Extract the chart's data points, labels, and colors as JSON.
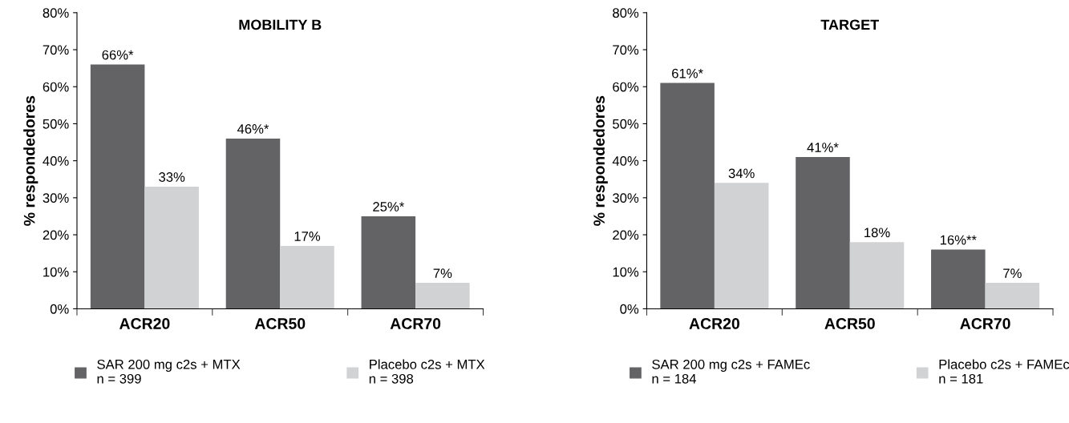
{
  "chart_data": [
    {
      "type": "bar",
      "title": "MOBILITY B",
      "ylabel": "% respondedores",
      "categories": [
        "ACR20",
        "ACR50",
        "ACR70"
      ],
      "ylim": [
        0,
        80
      ],
      "yticks": [
        {
          "value": 0,
          "label": "0%"
        },
        {
          "value": 10,
          "label": "10%"
        },
        {
          "value": 20,
          "label": "20%"
        },
        {
          "value": 30,
          "label": "30%"
        },
        {
          "value": 40,
          "label": "40%"
        },
        {
          "value": 50,
          "label": "50%"
        },
        {
          "value": 60,
          "label": "60%"
        },
        {
          "value": 70,
          "label": "70%"
        },
        {
          "value": 80,
          "label": "80%"
        }
      ],
      "legend": "bottom",
      "grid": false,
      "series": [
        {
          "name": "SAR 200 mg c2s + MTX\nn = 399",
          "color": "#636366",
          "values": [
            66,
            46,
            25
          ],
          "value_labels": [
            "66%*",
            "46%*",
            "25%*"
          ]
        },
        {
          "name": "Placebo c2s + MTX\nn = 398",
          "color": "#d1d2d4",
          "values": [
            33,
            17,
            7
          ],
          "value_labels": [
            "33%",
            "17%",
            "7%"
          ]
        }
      ]
    },
    {
      "type": "bar",
      "title": "TARGET",
      "ylabel": "% respondedores",
      "categories": [
        "ACR20",
        "ACR50",
        "ACR70"
      ],
      "ylim": [
        0,
        80
      ],
      "yticks": [
        {
          "value": 0,
          "label": "0%"
        },
        {
          "value": 10,
          "label": "10%"
        },
        {
          "value": 20,
          "label": "20%"
        },
        {
          "value": 30,
          "label": "30%"
        },
        {
          "value": 40,
          "label": "40%"
        },
        {
          "value": 50,
          "label": "50%"
        },
        {
          "value": 60,
          "label": "60%"
        },
        {
          "value": 70,
          "label": "70%"
        },
        {
          "value": 80,
          "label": "80%"
        }
      ],
      "legend": "bottom",
      "grid": false,
      "series": [
        {
          "name": "SAR 200 mg c2s + FAMEc\nn = 184",
          "color": "#636366",
          "values": [
            61,
            41,
            16
          ],
          "value_labels": [
            "61%*",
            "41%*",
            "16%**"
          ]
        },
        {
          "name": "Placebo c2s + FAMEc\nn = 181",
          "color": "#d1d2d4",
          "values": [
            34,
            18,
            7
          ],
          "value_labels": [
            "34%",
            "18%",
            "7%"
          ]
        }
      ]
    }
  ]
}
